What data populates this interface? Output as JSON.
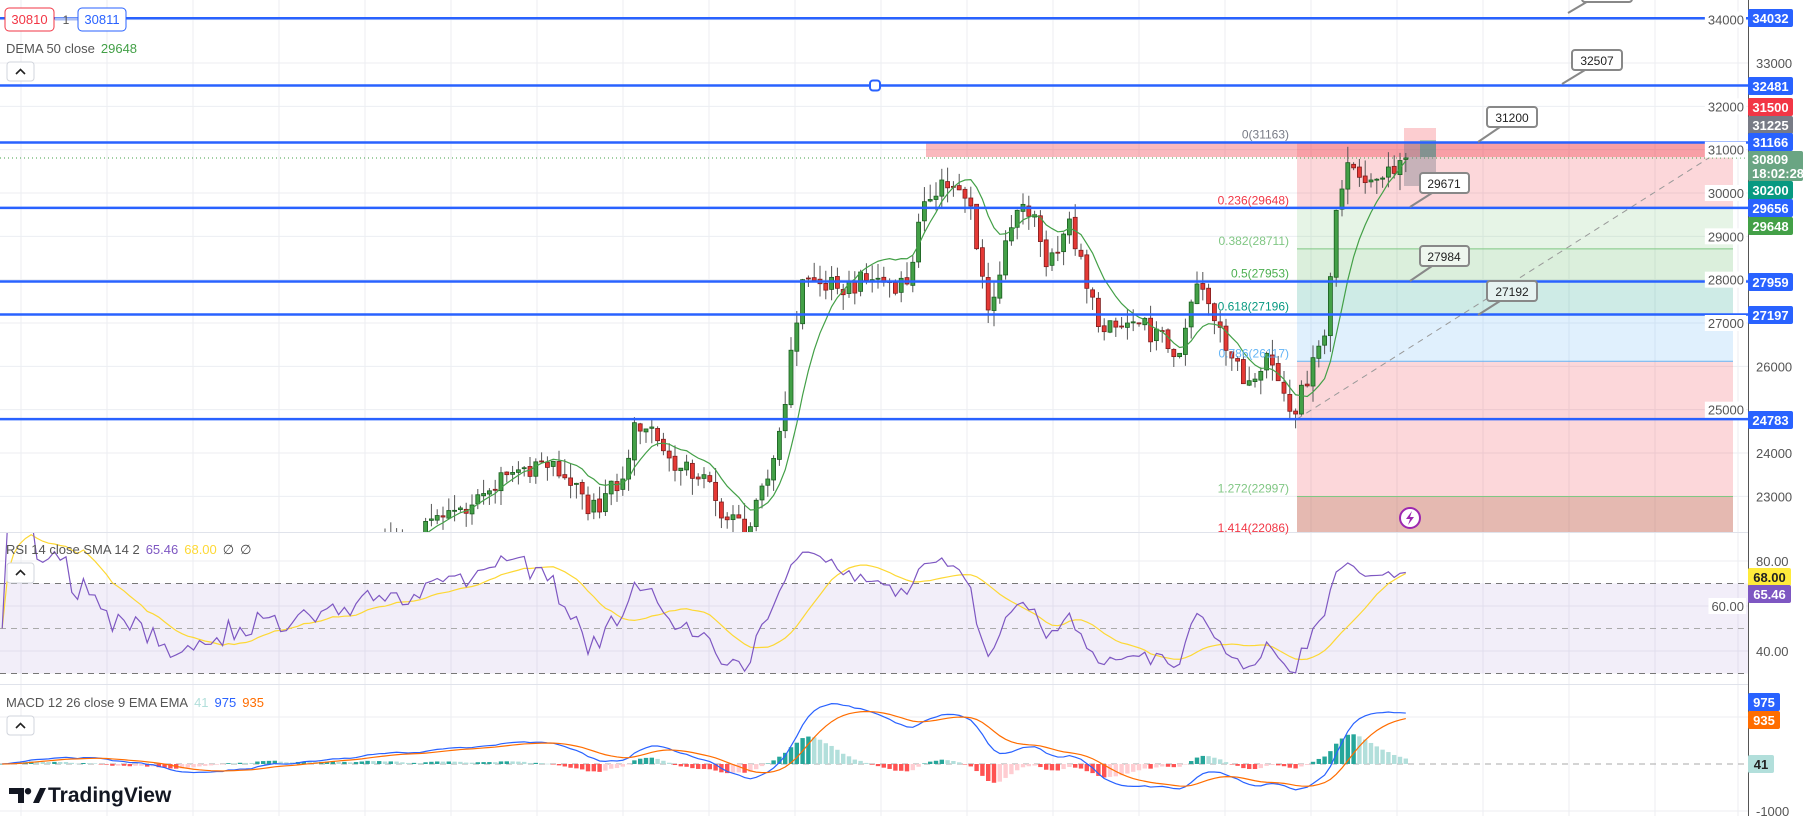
{
  "header": {
    "sell_price": "30810",
    "spread": "1",
    "buy_price": "30811",
    "dema_label": "DEMA 50 close",
    "dema_value": "29648",
    "collapse_icon": "chevron-up-icon"
  },
  "rsi_legend": {
    "label": "RSI 14 close SMA 14 2",
    "rsi": "65.46",
    "sma": "68.00",
    "v3": "∅",
    "v4": "∅"
  },
  "macd_legend": {
    "label": "MACD 12 26 close 9 EMA EMA",
    "hist": "41",
    "macd": "975",
    "signal": "935"
  },
  "logo": "TradingView",
  "colors": {
    "level_line": "#2962ff",
    "up": "#43a047",
    "down": "#e53935",
    "rsi": "#7e57c2",
    "rsi_sma": "#fdd835",
    "macd": "#2962ff",
    "signal": "#ff6d00"
  },
  "axis": {
    "price_ticks": [
      "34000",
      "33000",
      "32000",
      "31000",
      "30000",
      "29000",
      "28000",
      "27000",
      "26000",
      "25000",
      "24000",
      "23000"
    ],
    "rsi_ticks": [
      "80.00",
      "60.00",
      "40.00"
    ],
    "macd_ticks": [
      "-1000"
    ],
    "badges": [
      {
        "value": "34032",
        "price": 34032,
        "color": "#2962ff"
      },
      {
        "value": "32481",
        "price": 32481,
        "color": "#2962ff"
      },
      {
        "value": "31500",
        "price": 31500,
        "color": "#f23645"
      },
      {
        "value": "31225",
        "price": 31225,
        "color": "#787b86"
      },
      {
        "value": "31166",
        "price": 31166,
        "color": "#2962ff"
      },
      {
        "value": "30200",
        "price": 30200,
        "color": "#089981"
      },
      {
        "value": "29656",
        "price": 29656,
        "color": "#2962ff"
      },
      {
        "value": "29648",
        "price": 29648,
        "color": "#43a047"
      },
      {
        "value": "27959",
        "price": 27959,
        "color": "#2962ff"
      },
      {
        "value": "27197",
        "price": 27197,
        "color": "#2962ff"
      },
      {
        "value": "24783",
        "price": 24783,
        "color": "#2962ff"
      }
    ],
    "last_price": {
      "value": "30809",
      "countdown": "18:02:28",
      "color": "#6aa583"
    },
    "rsi_badges": [
      {
        "value": "68.00",
        "color": "#ffeb3b",
        "text": "#222"
      },
      {
        "value": "65.46",
        "color": "#7e57c2",
        "text": "#fff"
      }
    ],
    "macd_badges": [
      {
        "value": "975",
        "color": "#2962ff",
        "text": "#fff"
      },
      {
        "value": "935",
        "color": "#ff6d00",
        "text": "#fff"
      },
      {
        "value": "41",
        "color": "#b2dfdb",
        "text": "#222"
      }
    ]
  },
  "drawings": {
    "horizontal_levels": [
      34032,
      32481,
      31166,
      29656,
      27959,
      27197,
      24783
    ],
    "callouts": [
      "32507",
      "31200",
      "29671",
      "27984",
      "27192"
    ],
    "fib_levels": [
      {
        "label": "0(31163)",
        "price": 31163,
        "color": "#787b86"
      },
      {
        "label": "0.236(29648)",
        "price": 29648,
        "color": "#f23645"
      },
      {
        "label": "0.382(28711)",
        "price": 28711,
        "color": "#81c784"
      },
      {
        "label": "0.5(27953)",
        "price": 27953,
        "color": "#4caf50"
      },
      {
        "label": "0.618(27196)",
        "price": 27196,
        "color": "#089981"
      },
      {
        "label": "0.786(26117)",
        "price": 26117,
        "color": "#64b5f6"
      },
      {
        "label": "1.272(22997)",
        "price": 22997,
        "color": "#81c784"
      },
      {
        "label": "1.414(22086)",
        "price": 22086,
        "color": "#f23645"
      }
    ],
    "fib_base": 24783
  },
  "chart_data": {
    "type": "line",
    "style": "candlestick",
    "title": "",
    "ylim": [
      22086,
      34400
    ],
    "close_keypoints": [
      [
        -81,
        21000
      ],
      [
        -70,
        21600
      ],
      [
        -60,
        21300
      ],
      [
        -50,
        20600
      ],
      [
        -40,
        20900
      ],
      [
        -30,
        21200
      ],
      [
        -20,
        21600
      ],
      [
        -10,
        22100
      ],
      [
        0,
        22800
      ],
      [
        6,
        23500
      ],
      [
        12,
        23800
      ],
      [
        18,
        23300
      ],
      [
        20,
        22600
      ],
      [
        26,
        23400
      ],
      [
        28,
        24700
      ],
      [
        31,
        24600
      ],
      [
        35,
        23600
      ],
      [
        40,
        23500
      ],
      [
        43,
        22500
      ],
      [
        48,
        22300
      ],
      [
        51,
        23400
      ],
      [
        53,
        24500
      ],
      [
        56,
        27000
      ],
      [
        57,
        28000
      ],
      [
        63,
        27800
      ],
      [
        69,
        28000
      ],
      [
        75,
        27900
      ],
      [
        78,
        29800
      ],
      [
        81,
        30300
      ],
      [
        86,
        29700
      ],
      [
        89,
        27300
      ],
      [
        94,
        29600
      ],
      [
        97,
        29500
      ],
      [
        99,
        28300
      ],
      [
        103,
        29400
      ],
      [
        106,
        27800
      ],
      [
        109,
        26800
      ],
      [
        115,
        27000
      ],
      [
        122,
        26300
      ],
      [
        125,
        27900
      ],
      [
        129,
        26900
      ],
      [
        133,
        25600
      ],
      [
        137,
        26300
      ],
      [
        142,
        24900
      ],
      [
        145,
        26200
      ],
      [
        147,
        26700
      ],
      [
        149,
        29600
      ],
      [
        151,
        30700
      ],
      [
        155,
        30300
      ],
      [
        158,
        30600
      ],
      [
        161,
        30809
      ]
    ],
    "last_close": 30809
  }
}
